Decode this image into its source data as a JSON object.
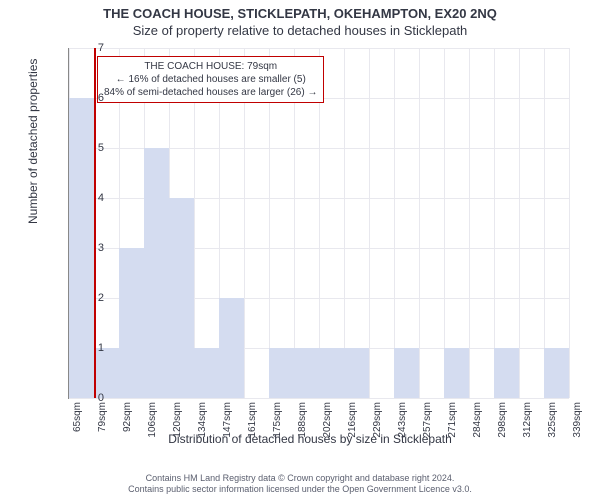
{
  "titles": {
    "line1": "THE COACH HOUSE, STICKLEPATH, OKEHAMPTON, EX20 2NQ",
    "line2": "Size of property relative to detached houses in Sticklepath"
  },
  "annotation": {
    "line1": "THE COACH HOUSE: 79sqm",
    "line2": "← 16% of detached houses are smaller (5)",
    "line3": "84% of semi-detached houses are larger (26) →",
    "border_color": "#c00000",
    "bg_color": "#ffffff",
    "fontsize": 10
  },
  "chart": {
    "type": "histogram",
    "xlabel": "Distribution of detached houses by size in Sticklepath",
    "ylabel": "Number of detached properties",
    "ylim": [
      0,
      7
    ],
    "ytick_step": 1,
    "xtick_labels": [
      "65sqm",
      "79sqm",
      "92sqm",
      "106sqm",
      "120sqm",
      "134sqm",
      "147sqm",
      "161sqm",
      "175sqm",
      "188sqm",
      "202sqm",
      "216sqm",
      "229sqm",
      "243sqm",
      "257sqm",
      "271sqm",
      "284sqm",
      "298sqm",
      "312sqm",
      "325sqm",
      "339sqm"
    ],
    "xtick_count": 21,
    "bars": [
      {
        "bin": 0,
        "value": 6
      },
      {
        "bin": 1,
        "value": 1
      },
      {
        "bin": 2,
        "value": 3
      },
      {
        "bin": 3,
        "value": 5
      },
      {
        "bin": 4,
        "value": 4
      },
      {
        "bin": 5,
        "value": 1
      },
      {
        "bin": 6,
        "value": 2
      },
      {
        "bin": 7,
        "value": 0
      },
      {
        "bin": 8,
        "value": 1
      },
      {
        "bin": 9,
        "value": 1
      },
      {
        "bin": 10,
        "value": 1
      },
      {
        "bin": 11,
        "value": 1
      },
      {
        "bin": 12,
        "value": 0
      },
      {
        "bin": 13,
        "value": 1
      },
      {
        "bin": 14,
        "value": 0
      },
      {
        "bin": 15,
        "value": 1
      },
      {
        "bin": 16,
        "value": 0
      },
      {
        "bin": 17,
        "value": 1
      },
      {
        "bin": 18,
        "value": 0
      },
      {
        "bin": 19,
        "value": 1
      }
    ],
    "bar_color": "#d4dcf0",
    "grid_color": "#e8e8ee",
    "axis_color": "#888888",
    "background_color": "#ffffff",
    "marker_bin_edge": 1,
    "marker_color": "#c00000",
    "label_fontsize": 12,
    "tick_fontsize": 10
  },
  "footer": {
    "line1": "Contains HM Land Registry data © Crown copyright and database right 2024.",
    "line2": "Contains public sector information licensed under the Open Government Licence v3.0."
  }
}
